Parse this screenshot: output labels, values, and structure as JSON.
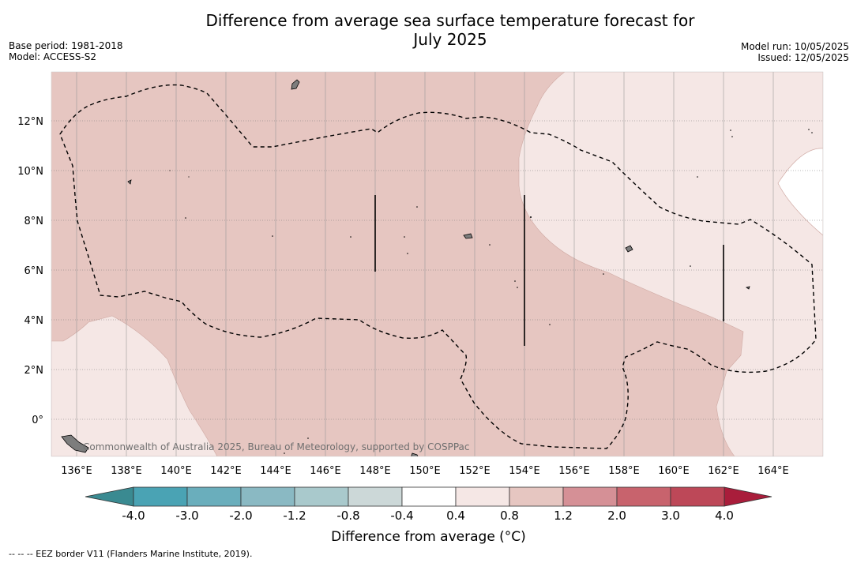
{
  "title_line1": "Difference from average sea surface temperature forecast for",
  "title_line2": "July 2025",
  "base_period": "Base period: 1981-2018",
  "model": "Model: ACCESS-S2",
  "model_run": "Model run: 10/05/2025",
  "issued": "Issued: 12/05/2025",
  "copyright": "Commonwealth of Australia 2025, Bureau of Meteorology, supported by COSPPac",
  "lat_labels": [
    "12°N",
    "10°N",
    "8°N",
    "6°N",
    "4°N",
    "2°N",
    "0°"
  ],
  "lon_labels": [
    "136°E",
    "138°E",
    "140°E",
    "142°E",
    "144°E",
    "146°E",
    "148°E",
    "150°E",
    "152°E",
    "154°E",
    "156°E",
    "158°E",
    "160°E",
    "162°E",
    "164°E"
  ],
  "colorbar": {
    "title": "Difference from average (°C)",
    "ticks": [
      "-4.0",
      "-3.0",
      "-2.0",
      "-1.2",
      "-0.8",
      "-0.4",
      "0.4",
      "0.8",
      "1.2",
      "2.0",
      "3.0",
      "4.0"
    ],
    "colors": [
      "#4aa3b4",
      "#6aaebc",
      "#8ab9c3",
      "#a9c9cc",
      "#ccd8d8",
      "#ffffff",
      "#f5e7e5",
      "#e6c6c1",
      "#d59096",
      "#c8636d",
      "#bd4858"
    ],
    "under_color": "#3a8a91",
    "over_color": "#a91d3b"
  },
  "footnote": "-- -- -- EEZ border V11 (Flanders Marine Institute, 2019).",
  "colors": {
    "anomaly_0_4_0_8": "#f5e7e5",
    "anomaly_0_8_1_2": "#e6c6c1",
    "no_data": "#ffffff"
  }
}
